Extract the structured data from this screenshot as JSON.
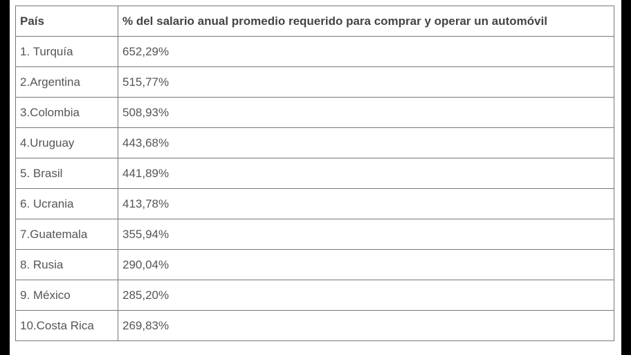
{
  "table": {
    "headers": {
      "country": "País",
      "percent": "% del salario anual promedio requerido para comprar y operar un automóvil"
    },
    "rows": [
      {
        "country": "1. Turquía",
        "percent": "652,29%"
      },
      {
        "country": "2.Argentina",
        "percent": "515,77%"
      },
      {
        "country": "3.Colombia",
        "percent": "508,93%"
      },
      {
        "country": "4.Uruguay",
        "percent": "443,68%"
      },
      {
        "country": "5. Brasil",
        "percent": "441,89%"
      },
      {
        "country": "6. Ucrania",
        "percent": "413,78%"
      },
      {
        "country": "7.Guatemala",
        "percent": "355,94%"
      },
      {
        "country": "8. Rusia",
        "percent": "290,04%"
      },
      {
        "country": "9. México",
        "percent": "285,20%"
      },
      {
        "country": "10.Costa Rica",
        "percent": "269,83%"
      }
    ]
  }
}
